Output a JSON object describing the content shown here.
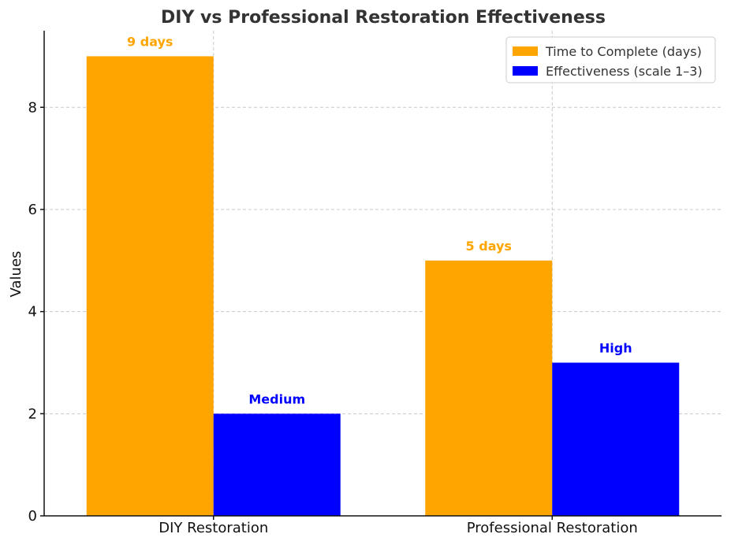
{
  "chart_data": {
    "type": "bar",
    "title": "DIY vs Professional Restoration Effectiveness",
    "xlabel": "",
    "ylabel": "Values",
    "categories": [
      "DIY Restoration",
      "Professional Restoration"
    ],
    "series": [
      {
        "name": "Time to Complete (days)",
        "color": "#FFA500",
        "values": [
          9,
          5
        ],
        "labels": [
          "9 days",
          "5 days"
        ]
      },
      {
        "name": "Effectiveness (scale 1–3)",
        "color": "#0000FF",
        "values": [
          2,
          3
        ],
        "labels": [
          "Medium",
          "High"
        ]
      }
    ],
    "ylim": [
      0,
      9.5
    ],
    "yticks": [
      0,
      2,
      4,
      6,
      8
    ],
    "grid": true,
    "legend_position": "top-right"
  }
}
